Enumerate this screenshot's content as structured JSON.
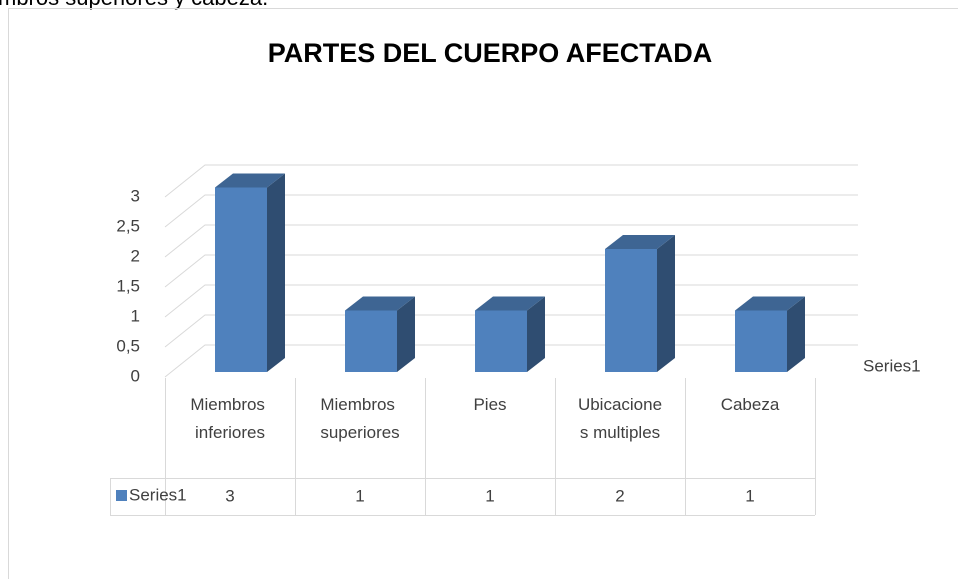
{
  "caption": "mbros superiores y cabeza.",
  "chart_data": {
    "type": "bar3d",
    "title": "PARTES DEL CUERPO AFECTADA",
    "categories": [
      "Miembros inferiores",
      "Miembros superiores",
      "Pies",
      "Ubicaciones multiples",
      "Cabeza"
    ],
    "series": [
      {
        "name": "Series1",
        "color": "#4f81bd",
        "values": [
          3,
          1,
          1,
          2,
          1
        ]
      }
    ],
    "ylim": [
      0,
      3
    ],
    "yticks": [
      0,
      {
        "value": 0.5,
        "label": "0,5"
      },
      1,
      {
        "value": 1.5,
        "label": "1,5"
      },
      2,
      {
        "value": 2.5,
        "label": "2,5"
      },
      3
    ],
    "grid": true,
    "data_table": true
  }
}
